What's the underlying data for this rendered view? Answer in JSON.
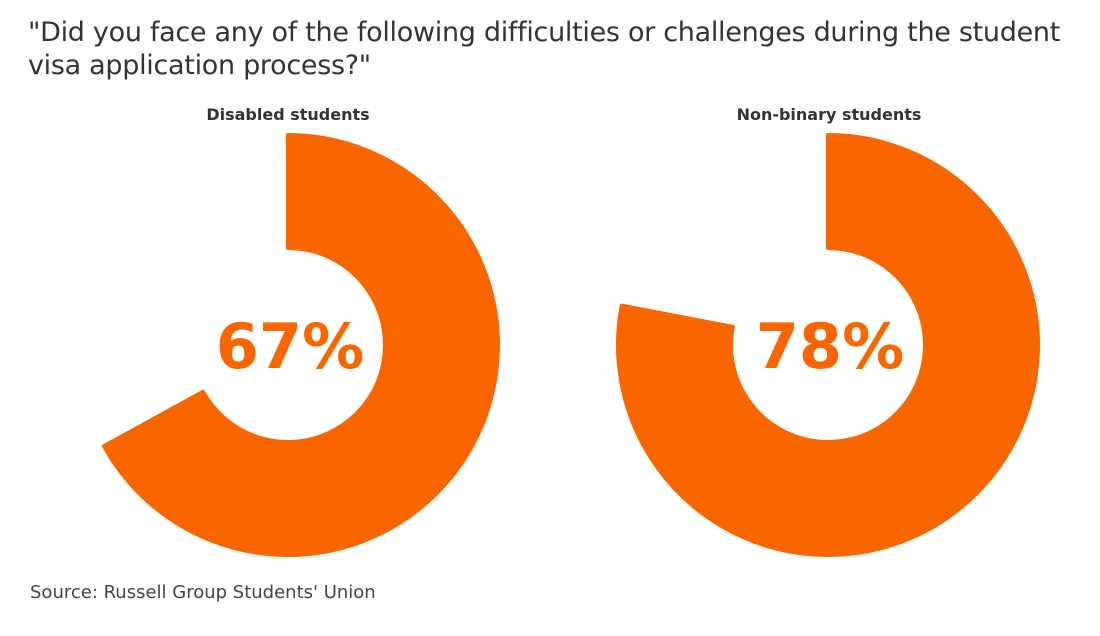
{
  "chart_data": {
    "type": "pie",
    "title": "\"Did you face any of the following difficulties or challenges during the student visa application process?\"",
    "source": "Source: Russell Group Students' Union",
    "color": "#F96600",
    "charts": [
      {
        "name": "Disabled students",
        "value": 67,
        "label": "67%"
      },
      {
        "name": "Non-binary students",
        "value": 78,
        "label": "78%"
      }
    ]
  }
}
